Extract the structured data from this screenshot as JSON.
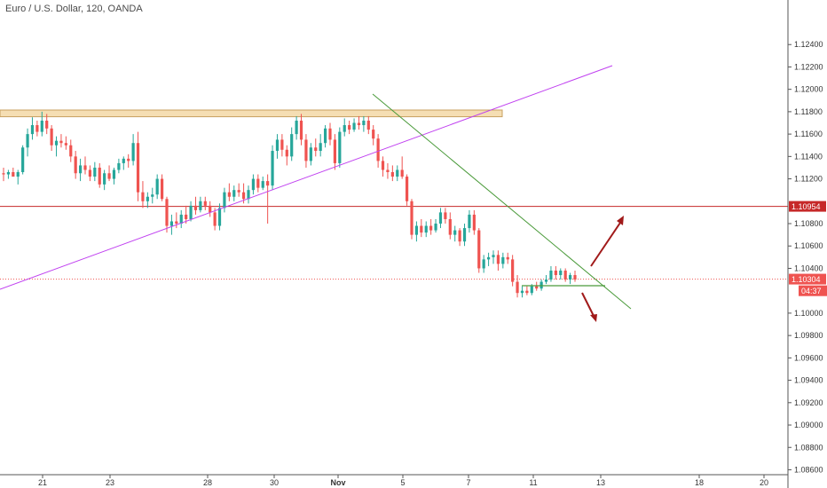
{
  "chart_data": {
    "type": "candlestick",
    "title": "Euro / U.S. Dollar, 120, OANDA",
    "ylim": [
      1.0858,
      1.126
    ],
    "yticks": [
      "1.12400",
      "1.12200",
      "1.12000",
      "1.11800",
      "1.11600",
      "1.11400",
      "1.11200",
      "1.10800",
      "1.10600",
      "1.10400",
      "1.10000",
      "1.09800",
      "1.09600",
      "1.09400",
      "1.09200",
      "1.09000",
      "1.08800",
      "1.08600"
    ],
    "xticks": [
      "21",
      "23",
      "28",
      "30",
      "Nov",
      "5",
      "7",
      "11",
      "13",
      "18",
      "20"
    ],
    "colors": {
      "up": "#26a69a",
      "down": "#ef5350",
      "resistance_fill": "#f5deb3",
      "resistance_edge": "#c8a060",
      "trendline_purple": "#c040f0",
      "trendline_green": "#4a9a3a",
      "horizontal_red": "#c62828",
      "arrow": "#a11a1a"
    },
    "resistance_zone": [
      1.11755,
      1.11815
    ],
    "horizontal_level": 1.10954,
    "current_price": 1.10304,
    "price_labels": [
      {
        "text": "1.10954",
        "value": 1.10954,
        "color": "#c62828"
      },
      {
        "text": "1.10304",
        "value": 1.10304,
        "color": "#ef5350"
      },
      {
        "text": "04:37",
        "value": 1.102,
        "color": "#ef5350"
      }
    ],
    "annotations": [
      "ascending support line",
      "descending trend line",
      "breakout up arrow",
      "breakdown down arrow"
    ],
    "candles": [
      [
        1.1125,
        1.113,
        1.1118,
        1.1124
      ],
      [
        1.1124,
        1.1128,
        1.112,
        1.1126
      ],
      [
        1.1126,
        1.113,
        1.1122,
        1.1122
      ],
      [
        1.1122,
        1.1128,
        1.1115,
        1.1126
      ],
      [
        1.1126,
        1.115,
        1.1124,
        1.1148
      ],
      [
        1.1148,
        1.1165,
        1.114,
        1.116
      ],
      [
        1.116,
        1.1175,
        1.1155,
        1.1168
      ],
      [
        1.1168,
        1.1172,
        1.1158,
        1.1162
      ],
      [
        1.1162,
        1.118,
        1.1158,
        1.1172
      ],
      [
        1.1172,
        1.1178,
        1.116,
        1.1165
      ],
      [
        1.1165,
        1.1168,
        1.1145,
        1.115
      ],
      [
        1.115,
        1.1158,
        1.114,
        1.1154
      ],
      [
        1.1154,
        1.116,
        1.1148,
        1.1152
      ],
      [
        1.1152,
        1.1158,
        1.1146,
        1.115
      ],
      [
        1.115,
        1.1155,
        1.1135,
        1.114
      ],
      [
        1.114,
        1.1145,
        1.112,
        1.1125
      ],
      [
        1.1125,
        1.1138,
        1.1118,
        1.1132
      ],
      [
        1.1132,
        1.114,
        1.1124,
        1.1128
      ],
      [
        1.1128,
        1.1132,
        1.1118,
        1.1122
      ],
      [
        1.1122,
        1.1135,
        1.1118,
        1.113
      ],
      [
        1.113,
        1.1134,
        1.1112,
        1.1115
      ],
      [
        1.1115,
        1.1128,
        1.111,
        1.1125
      ],
      [
        1.1125,
        1.1132,
        1.1118,
        1.112
      ],
      [
        1.112,
        1.113,
        1.1115,
        1.1128
      ],
      [
        1.1128,
        1.1138,
        1.1125,
        1.1134
      ],
      [
        1.1134,
        1.114,
        1.1128,
        1.1138
      ],
      [
        1.1138,
        1.1142,
        1.113,
        1.1136
      ],
      [
        1.1136,
        1.116,
        1.1132,
        1.1152
      ],
      [
        1.1152,
        1.1162,
        1.11,
        1.1108
      ],
      [
        1.1108,
        1.1118,
        1.1094,
        1.11
      ],
      [
        1.11,
        1.1108,
        1.1094,
        1.1104
      ],
      [
        1.1104,
        1.1112,
        1.1098,
        1.1106
      ],
      [
        1.1106,
        1.1124,
        1.1102,
        1.112
      ],
      [
        1.112,
        1.1124,
        1.11,
        1.1102
      ],
      [
        1.1102,
        1.1104,
        1.1072,
        1.1078
      ],
      [
        1.1078,
        1.1088,
        1.107,
        1.1082
      ],
      [
        1.1082,
        1.109,
        1.1076,
        1.108
      ],
      [
        1.108,
        1.1092,
        1.1076,
        1.1088
      ],
      [
        1.1088,
        1.1096,
        1.108,
        1.1084
      ],
      [
        1.1084,
        1.11,
        1.1082,
        1.1096
      ],
      [
        1.1096,
        1.1104,
        1.1088,
        1.1092
      ],
      [
        1.1092,
        1.1104,
        1.109,
        1.11
      ],
      [
        1.11,
        1.1104,
        1.1092,
        1.1096
      ],
      [
        1.1096,
        1.11,
        1.1086,
        1.109
      ],
      [
        1.109,
        1.1094,
        1.1074,
        1.1078
      ],
      [
        1.1078,
        1.1098,
        1.1074,
        1.1094
      ],
      [
        1.1094,
        1.1112,
        1.109,
        1.1108
      ],
      [
        1.1108,
        1.1116,
        1.11,
        1.1104
      ],
      [
        1.1104,
        1.1114,
        1.11,
        1.111
      ],
      [
        1.111,
        1.1116,
        1.1104,
        1.1108
      ],
      [
        1.1108,
        1.1116,
        1.1098,
        1.1102
      ],
      [
        1.1102,
        1.1114,
        1.1098,
        1.111
      ],
      [
        1.111,
        1.1124,
        1.1106,
        1.112
      ],
      [
        1.112,
        1.1124,
        1.1108,
        1.1112
      ],
      [
        1.1112,
        1.1122,
        1.111,
        1.1118
      ],
      [
        1.1118,
        1.1124,
        1.108,
        1.1114
      ],
      [
        1.1114,
        1.115,
        1.111,
        1.1145
      ],
      [
        1.1145,
        1.116,
        1.1138,
        1.1155
      ],
      [
        1.1155,
        1.116,
        1.114,
        1.1146
      ],
      [
        1.1146,
        1.115,
        1.1132,
        1.114
      ],
      [
        1.114,
        1.1166,
        1.1136,
        1.116
      ],
      [
        1.116,
        1.1176,
        1.1155,
        1.1172
      ],
      [
        1.1172,
        1.1178,
        1.115,
        1.1155
      ],
      [
        1.1155,
        1.116,
        1.113,
        1.1136
      ],
      [
        1.1136,
        1.1152,
        1.1132,
        1.1148
      ],
      [
        1.1148,
        1.1156,
        1.114,
        1.1145
      ],
      [
        1.1145,
        1.116,
        1.114,
        1.1152
      ],
      [
        1.1152,
        1.1168,
        1.1148,
        1.1165
      ],
      [
        1.1165,
        1.117,
        1.115,
        1.1155
      ],
      [
        1.1155,
        1.116,
        1.1128,
        1.1134
      ],
      [
        1.1134,
        1.1166,
        1.113,
        1.1162
      ],
      [
        1.1162,
        1.1174,
        1.1158,
        1.1168
      ],
      [
        1.1168,
        1.1172,
        1.116,
        1.1164
      ],
      [
        1.1164,
        1.1174,
        1.1162,
        1.117
      ],
      [
        1.117,
        1.1176,
        1.1164,
        1.1168
      ],
      [
        1.1168,
        1.1176,
        1.1162,
        1.1172
      ],
      [
        1.1172,
        1.1176,
        1.116,
        1.1164
      ],
      [
        1.1164,
        1.1168,
        1.115,
        1.1156
      ],
      [
        1.1156,
        1.116,
        1.113,
        1.1136
      ],
      [
        1.1136,
        1.114,
        1.1122,
        1.1128
      ],
      [
        1.1128,
        1.1134,
        1.112,
        1.1126
      ],
      [
        1.1126,
        1.1132,
        1.1118,
        1.1122
      ],
      [
        1.1122,
        1.1132,
        1.1118,
        1.1128
      ],
      [
        1.1128,
        1.114,
        1.112,
        1.1122
      ],
      [
        1.1122,
        1.1124,
        1.1096,
        1.11
      ],
      [
        1.11,
        1.1102,
        1.1066,
        1.107
      ],
      [
        1.107,
        1.1082,
        1.1064,
        1.1078
      ],
      [
        1.1078,
        1.1084,
        1.1068,
        1.1072
      ],
      [
        1.1072,
        1.1082,
        1.1068,
        1.1078
      ],
      [
        1.1078,
        1.1084,
        1.107,
        1.1074
      ],
      [
        1.1074,
        1.1084,
        1.1072,
        1.108
      ],
      [
        1.108,
        1.1094,
        1.1076,
        1.109
      ],
      [
        1.109,
        1.1094,
        1.108,
        1.1084
      ],
      [
        1.1084,
        1.109,
        1.1066,
        1.107
      ],
      [
        1.107,
        1.1078,
        1.1064,
        1.1074
      ],
      [
        1.1074,
        1.1076,
        1.106,
        1.1064
      ],
      [
        1.1064,
        1.108,
        1.106,
        1.1076
      ],
      [
        1.1076,
        1.1092,
        1.1072,
        1.1088
      ],
      [
        1.1088,
        1.1092,
        1.107,
        1.1074
      ],
      [
        1.1074,
        1.1076,
        1.1036,
        1.104
      ],
      [
        1.104,
        1.1052,
        1.1036,
        1.1048
      ],
      [
        1.1048,
        1.1054,
        1.1042,
        1.105
      ],
      [
        1.105,
        1.1056,
        1.1044,
        1.1052
      ],
      [
        1.1052,
        1.1056,
        1.1038,
        1.1044
      ],
      [
        1.1044,
        1.1054,
        1.104,
        1.105
      ],
      [
        1.105,
        1.1054,
        1.1044,
        1.1048
      ],
      [
        1.1048,
        1.1052,
        1.1024,
        1.1028
      ],
      [
        1.1028,
        1.1034,
        1.1014,
        1.1018
      ],
      [
        1.1018,
        1.1024,
        1.1014,
        1.102
      ],
      [
        1.102,
        1.1024,
        1.1016,
        1.1018
      ],
      [
        1.1018,
        1.1026,
        1.1016,
        1.1024
      ],
      [
        1.1024,
        1.1028,
        1.102,
        1.1022
      ],
      [
        1.1022,
        1.103,
        1.102,
        1.1028
      ],
      [
        1.1028,
        1.1034,
        1.1026,
        1.103
      ],
      [
        1.103,
        1.1042,
        1.1028,
        1.1038
      ],
      [
        1.1038,
        1.1042,
        1.103,
        1.1034
      ],
      [
        1.1034,
        1.104,
        1.103,
        1.1038
      ],
      [
        1.1038,
        1.104,
        1.1028,
        1.103
      ],
      [
        1.103,
        1.1036,
        1.1026,
        1.1034
      ],
      [
        1.1034,
        1.1038,
        1.1028,
        1.103
      ]
    ]
  }
}
